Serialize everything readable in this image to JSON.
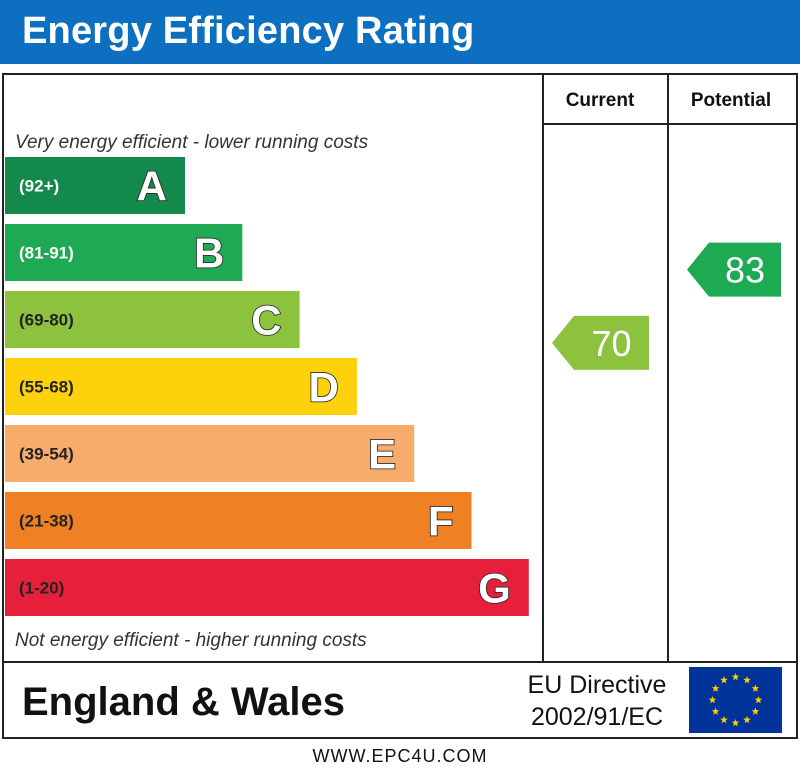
{
  "title": "Energy Efficiency Rating",
  "chart_data": {
    "type": "bar",
    "headers": {
      "current": "Current",
      "potential": "Potential"
    },
    "top_caption": "Very energy efficient - lower running costs",
    "bottom_caption": "Not energy efficient - higher running costs",
    "bands": [
      {
        "range": "(92+)",
        "letter": "A",
        "color": "#138a4b",
        "min": 92,
        "max": 100
      },
      {
        "range": "(81-91)",
        "letter": "B",
        "color": "#1daa52",
        "min": 81,
        "max": 91
      },
      {
        "range": "(69-80)",
        "letter": "C",
        "color": "#8dc23f",
        "min": 69,
        "max": 80
      },
      {
        "range": "(55-68)",
        "letter": "D",
        "color": "#fdd20a",
        "min": 55,
        "max": 68
      },
      {
        "range": "(39-54)",
        "letter": "E",
        "color": "#f7ac6b",
        "min": 39,
        "max": 54
      },
      {
        "range": "(21-38)",
        "letter": "F",
        "color": "#ef8024",
        "min": 21,
        "max": 38
      },
      {
        "range": "(1-20)",
        "letter": "G",
        "color": "#e6203a",
        "min": 1,
        "max": 20
      }
    ],
    "current": {
      "value": 70,
      "band": "C",
      "color": "#8dc23f"
    },
    "potential": {
      "value": 83,
      "band": "B",
      "color": "#1daa52"
    }
  },
  "footer": {
    "region": "England & Wales",
    "directive_line1": "EU Directive",
    "directive_line2": "2002/91/EC",
    "flag_color": "#003399",
    "star_color": "#ffcc00",
    "url": "WWW.EPC4U.COM"
  }
}
